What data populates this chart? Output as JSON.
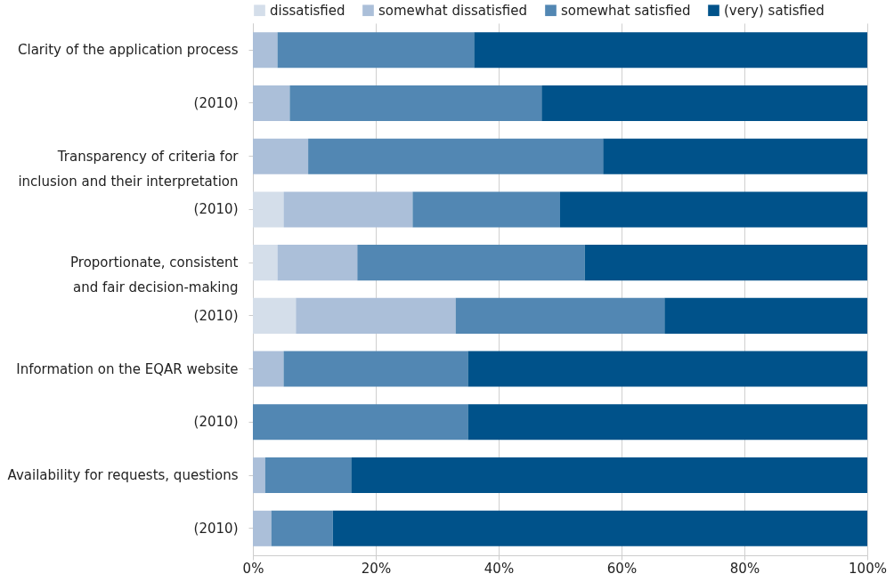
{
  "chart_data": {
    "type": "bar",
    "orientation": "horizontal",
    "stacked": true,
    "categories": [
      "Clarity of the application process",
      "(2010)",
      "Transparency of criteria for\ninclusion and their interpretation",
      "(2010)",
      "Proportionate, consistent\nand fair decision-making",
      "(2010)",
      "Information on the EQAR website",
      "(2010)",
      "Availability for requests, questions",
      "(2010)"
    ],
    "series": [
      {
        "name": "dissatisfied",
        "color": "#d4deea",
        "values": [
          0,
          0,
          0,
          5,
          4,
          7,
          0,
          0,
          0,
          0
        ]
      },
      {
        "name": "somewhat dissatisfied",
        "color": "#abbfd9",
        "values": [
          4,
          6,
          9,
          21,
          13,
          26,
          5,
          0,
          2,
          3
        ]
      },
      {
        "name": "somewhat satisfied",
        "color": "#5287b3",
        "values": [
          32,
          41,
          48,
          24,
          37,
          34,
          30,
          35,
          14,
          10
        ]
      },
      {
        "name": "(very) satisfied",
        "color": "#00528a",
        "values": [
          64,
          53,
          43,
          50,
          46,
          33,
          65,
          65,
          84,
          87
        ]
      }
    ],
    "xlim": [
      0,
      100
    ],
    "xticks": [
      {
        "value": 0,
        "label": "0%"
      },
      {
        "value": 20,
        "label": "20%"
      },
      {
        "value": 40,
        "label": "40%"
      },
      {
        "value": 60,
        "label": "60%"
      },
      {
        "value": 80,
        "label": "80%"
      },
      {
        "value": 100,
        "label": "100%"
      }
    ],
    "grid": "x",
    "legend": "top"
  }
}
